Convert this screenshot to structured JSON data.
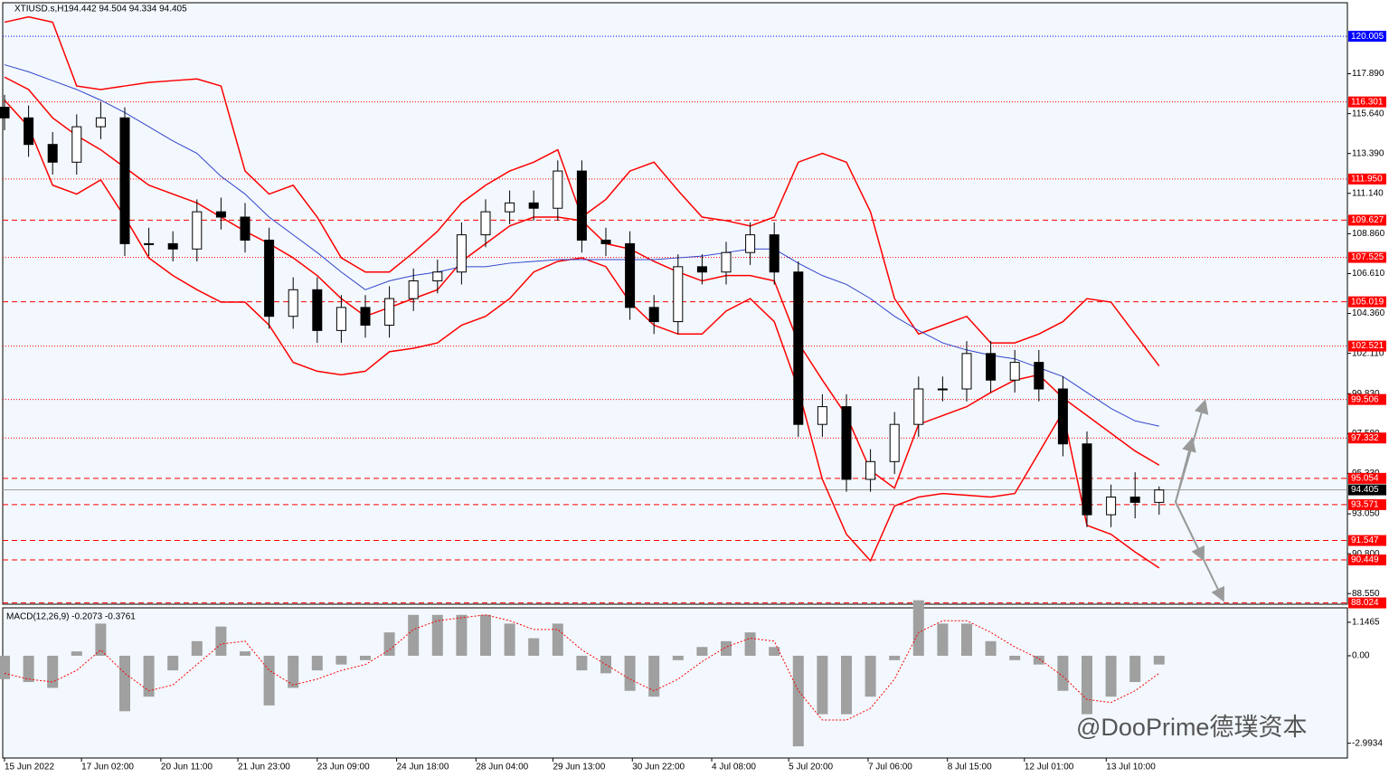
{
  "chart_data": [
    {
      "type": "candlestick",
      "title": "XTIUSD.s,H1",
      "quote": "94.442 94.504 94.334 94.405",
      "open": [
        116.0,
        115.4,
        113.9,
        112.9,
        114.9,
        115.4,
        108.3,
        108.3,
        108.0,
        110.1,
        109.8,
        108.5,
        104.2,
        105.7,
        103.4,
        104.7,
        103.7,
        105.2,
        106.2,
        106.7,
        108.8,
        110.1,
        110.6,
        110.3,
        112.4,
        108.5,
        108.3,
        104.7,
        103.9,
        107.0,
        106.7,
        107.8,
        108.8,
        106.7,
        98.1,
        99.1,
        95.0,
        96.0,
        98.1,
        100.1,
        100.1,
        102.1,
        100.6,
        101.6,
        100.1,
        97.0,
        93.0,
        94.0,
        93.7
      ],
      "high": [
        116.7,
        116.1,
        114.6,
        115.6,
        116.3,
        116.0,
        109.2,
        109.0,
        110.8,
        110.9,
        110.6,
        109.2,
        106.4,
        106.4,
        105.4,
        105.4,
        105.9,
        106.9,
        107.4,
        109.5,
        110.8,
        111.3,
        111.3,
        113.0,
        113.0,
        109.2,
        109.0,
        105.4,
        107.7,
        107.7,
        108.4,
        109.5,
        109.5,
        107.3,
        99.8,
        99.8,
        96.7,
        98.8,
        100.8,
        100.8,
        102.8,
        102.8,
        102.3,
        102.3,
        100.8,
        97.7,
        94.7,
        95.4,
        94.6
      ],
      "low": [
        114.7,
        113.2,
        112.2,
        112.2,
        114.2,
        107.6,
        107.6,
        107.3,
        107.3,
        109.1,
        107.8,
        103.5,
        103.5,
        102.7,
        102.7,
        103.0,
        103.0,
        104.5,
        105.5,
        106.0,
        108.1,
        109.4,
        109.6,
        109.6,
        107.8,
        107.6,
        104.0,
        103.2,
        103.2,
        106.0,
        106.0,
        107.1,
        106.0,
        97.4,
        97.4,
        94.3,
        94.3,
        95.3,
        97.4,
        99.4,
        99.4,
        99.9,
        99.9,
        99.4,
        96.3,
        92.3,
        92.3,
        92.8,
        93.0
      ],
      "close": [
        115.4,
        113.9,
        112.9,
        114.9,
        115.4,
        108.3,
        108.3,
        108.0,
        110.1,
        109.8,
        108.5,
        104.2,
        105.7,
        103.4,
        104.7,
        103.7,
        105.2,
        106.2,
        106.7,
        108.8,
        110.1,
        110.6,
        110.3,
        112.4,
        108.5,
        108.3,
        104.7,
        103.9,
        107.0,
        106.7,
        107.8,
        108.8,
        106.7,
        98.1,
        99.1,
        95.0,
        96.0,
        98.1,
        100.1,
        100.1,
        102.1,
        100.6,
        101.6,
        100.1,
        97.0,
        93.0,
        94.0,
        93.7,
        94.4
      ],
      "lines": [
        {
          "color": "#ff0000",
          "values": [
            120.8,
            121.1,
            120.8,
            117.2,
            117.0,
            117.2,
            117.4,
            117.5,
            117.6,
            117.2,
            112.4,
            111.1,
            111.6,
            109.8,
            107.5,
            106.7,
            106.7,
            107.8,
            109.0,
            110.6,
            111.6,
            112.4,
            112.9,
            113.6,
            109.8,
            110.8,
            112.4,
            112.9,
            111.3,
            109.8,
            109.6,
            109.3,
            109.8,
            112.9,
            113.4,
            112.9,
            110.1,
            105.2,
            103.2,
            103.7,
            104.2,
            102.7,
            102.7,
            103.2,
            103.9,
            105.2,
            105.0,
            103.2,
            101.4
          ]
        },
        {
          "color": "#ff0000",
          "values": [
            117.7,
            117.0,
            115.4,
            114.4,
            113.6,
            112.6,
            111.6,
            111.1,
            110.6,
            109.8,
            109.0,
            108.3,
            107.5,
            106.5,
            105.2,
            104.2,
            104.7,
            105.2,
            105.7,
            107.3,
            108.3,
            109.3,
            109.8,
            109.8,
            109.6,
            108.3,
            108.0,
            107.3,
            106.7,
            106.2,
            106.5,
            106.5,
            106.2,
            102.7,
            100.6,
            98.6,
            95.5,
            94.5,
            98.1,
            98.6,
            99.1,
            99.9,
            100.6,
            100.9,
            99.6,
            98.6,
            97.6,
            96.6,
            95.8
          ]
        },
        {
          "color": "#ff0000",
          "values": [
            116.4,
            114.9,
            111.6,
            111.1,
            111.9,
            109.8,
            107.5,
            106.5,
            105.7,
            105.0,
            105.0,
            103.7,
            101.6,
            101.1,
            100.9,
            101.1,
            102.2,
            102.4,
            102.7,
            103.7,
            104.2,
            105.2,
            106.7,
            107.3,
            107.5,
            107.0,
            105.0,
            103.7,
            103.2,
            103.2,
            104.5,
            105.2,
            103.9,
            100.1,
            95.0,
            91.9,
            90.4,
            93.5,
            94.0,
            94.2,
            94.1,
            94.0,
            94.2,
            96.5,
            98.8,
            92.4,
            91.9,
            90.9,
            90.0
          ]
        },
        {
          "color": "#3344cc",
          "values": [
            118.4,
            118.0,
            117.5,
            117.0,
            116.4,
            115.7,
            114.9,
            114.1,
            113.4,
            112.1,
            111.1,
            109.8,
            108.8,
            107.8,
            106.7,
            105.7,
            106.2,
            106.5,
            106.7,
            107.0,
            107.0,
            107.2,
            107.3,
            107.4,
            107.4,
            107.4,
            107.4,
            107.4,
            107.5,
            107.6,
            107.8,
            108.0,
            108.0,
            107.2,
            106.5,
            106.0,
            105.2,
            104.2,
            103.4,
            102.7,
            102.3,
            102.0,
            101.8,
            101.3,
            100.8,
            99.9,
            99.0,
            98.3,
            98.0
          ]
        }
      ],
      "levels": [
        {
          "value": 120.005,
          "color": "#0000ff",
          "style": "dot"
        },
        {
          "value": 116.301,
          "color": "#ff0000",
          "style": "dot"
        },
        {
          "value": 111.95,
          "label": "111.950",
          "color": "#ff0000",
          "style": "dot"
        },
        {
          "value": 109.627,
          "color": "#ff0000",
          "style": "dash"
        },
        {
          "value": 107.525,
          "color": "#ff0000",
          "style": "dot"
        },
        {
          "value": 105.019,
          "color": "#ff0000",
          "style": "dash"
        },
        {
          "value": 102.521,
          "color": "#ff0000",
          "style": "dot"
        },
        {
          "value": 99.506,
          "color": "#ff0000",
          "style": "dot"
        },
        {
          "value": 97.332,
          "color": "#ff0000",
          "style": "dot"
        },
        {
          "value": 95.054,
          "color": "#ff0000",
          "style": "dash"
        },
        {
          "value": 94.405,
          "color": "#000000",
          "style": "solid"
        },
        {
          "value": 93.571,
          "color": "#ff0000",
          "style": "dash"
        },
        {
          "value": 91.547,
          "color": "#ff0000",
          "style": "dash"
        },
        {
          "value": 90.449,
          "color": "#ff0000",
          "style": "dash"
        },
        {
          "value": 88.024,
          "color": "#ff0000",
          "style": "dash"
        }
      ],
      "ylim": [
        87.95,
        121.9
      ],
      "yticks": [
        {
          "value": 117.89,
          "label": "117.890"
        },
        {
          "value": 115.64,
          "label": "115.640"
        },
        {
          "value": 113.39,
          "label": "113.390"
        },
        {
          "value": 111.14,
          "label": "111.140"
        },
        {
          "value": 108.86,
          "label": "108.860"
        },
        {
          "value": 106.61,
          "label": "106.610"
        },
        {
          "value": 104.36,
          "label": "104.360"
        },
        {
          "value": 102.11,
          "label": "102.110"
        },
        {
          "value": 99.83,
          "label": "99.830"
        },
        {
          "value": 97.58,
          "label": "97.580"
        },
        {
          "value": 95.33,
          "label": "95.330"
        },
        {
          "value": 93.05,
          "label": "93.050"
        },
        {
          "value": 90.8,
          "label": "90.800"
        },
        {
          "value": 88.55,
          "label": "88.550"
        }
      ],
      "xticks": [
        {
          "value": 0,
          "label": "15 Jun 2022"
        },
        {
          "value": 3.2,
          "label": "17 Jun 02:00"
        },
        {
          "value": 6.5,
          "label": "20 Jun 11:00"
        },
        {
          "value": 9.7,
          "label": "21 Jun 23:00"
        },
        {
          "value": 13.0,
          "label": "23 Jun 09:00"
        },
        {
          "value": 16.3,
          "label": "24 Jun 18:00"
        },
        {
          "value": 19.6,
          "label": "28 Jun 04:00"
        },
        {
          "value": 22.8,
          "label": "29 Jun 13:00"
        },
        {
          "value": 26.1,
          "label": "30 Jun 22:00"
        },
        {
          "value": 29.4,
          "label": "4 Jul 08:00"
        },
        {
          "value": 32.6,
          "label": "5 Jul 20:00"
        },
        {
          "value": 35.9,
          "label": "7 Jul 06:00"
        },
        {
          "value": 39.2,
          "label": "8 Jul 15:00"
        },
        {
          "value": 42.4,
          "label": "12 Jul 01:00"
        },
        {
          "value": 45.8,
          "label": "13 Jul 10:00"
        }
      ]
    },
    {
      "type": "macd",
      "title": "MACD(12,26,9) -0.2073 -0.3761",
      "values": [
        -0.8,
        -0.9,
        -1.1,
        0.15,
        1.1,
        -1.9,
        -1.4,
        -0.5,
        0.5,
        1.0,
        0.15,
        -1.7,
        -1.1,
        -0.5,
        -0.3,
        -0.15,
        0.8,
        1.4,
        1.4,
        1.4,
        1.4,
        1.1,
        0.6,
        1.1,
        -0.5,
        -0.6,
        -1.2,
        -1.4,
        -0.15,
        0.3,
        0.5,
        0.8,
        0.3,
        -3.1,
        -2.0,
        -2.0,
        -1.4,
        -0.15,
        1.9,
        1.1,
        1.1,
        0.5,
        -0.15,
        -0.3,
        -1.2,
        -2.0,
        -1.4,
        -0.9,
        -0.3
      ],
      "color": "#a0a0a0",
      "signal": {
        "color": "#ff0000",
        "values": [
          -0.6,
          -0.8,
          -0.9,
          -0.5,
          0.2,
          -0.6,
          -1.2,
          -1.0,
          -0.3,
          0.4,
          0.5,
          -0.5,
          -1.0,
          -0.8,
          -0.5,
          -0.3,
          0.2,
          0.9,
          1.2,
          1.3,
          1.4,
          1.2,
          0.9,
          0.9,
          0.2,
          -0.3,
          -0.8,
          -1.2,
          -0.8,
          -0.2,
          0.3,
          0.6,
          0.5,
          -1.2,
          -2.2,
          -2.2,
          -1.8,
          -0.8,
          0.8,
          1.2,
          1.2,
          0.8,
          0.3,
          -0.1,
          -0.7,
          -1.5,
          -1.6,
          -1.2,
          -0.6
        ]
      },
      "ylim": [
        -3.5,
        1.64
      ],
      "yticks": [
        1.1465,
        {
          "value": 0,
          "label": "0.00"
        },
        -2.9934
      ]
    }
  ],
  "watermark": "@DooPrime德璞资本"
}
